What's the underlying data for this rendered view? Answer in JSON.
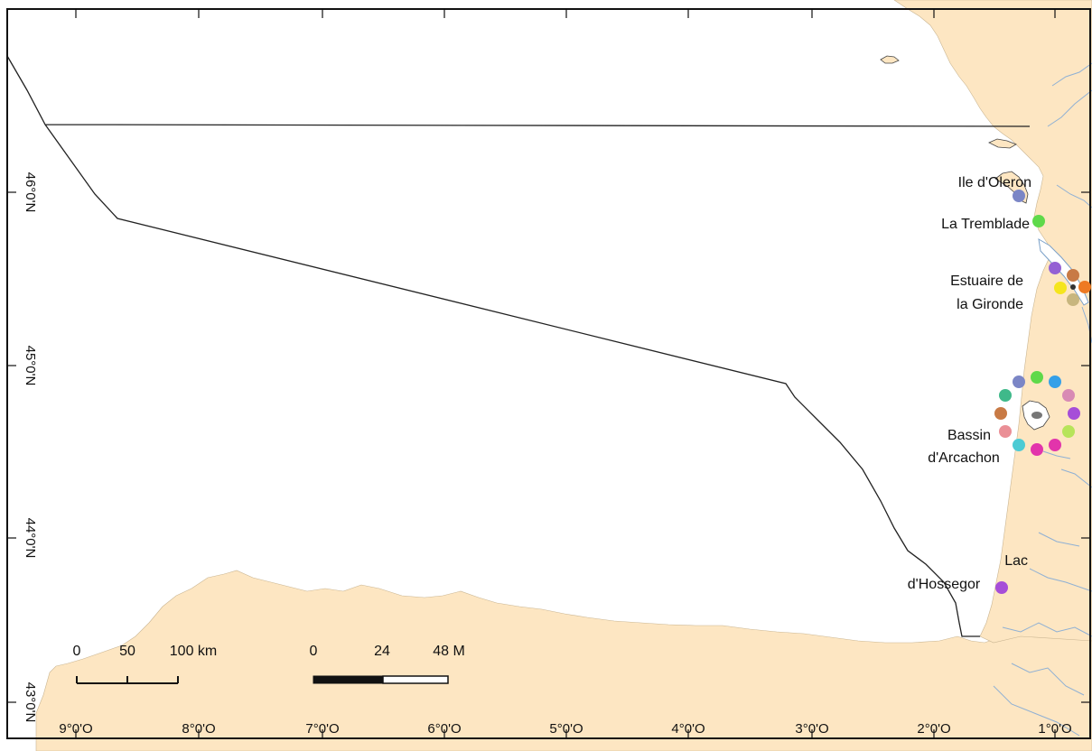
{
  "map": {
    "colors": {
      "land": "#fde6c2",
      "sea": "#ffffff",
      "river": "#8fb0d4",
      "coast": "#222222",
      "frame": "#111111"
    },
    "longitude_ticks": [
      "9°0'O",
      "8°0'O",
      "7°0'O",
      "6°0'O",
      "5°0'O",
      "4°0'O",
      "3°0'O",
      "2°0'O",
      "1°0'O"
    ],
    "latitude_ticks": [
      "46°0'N",
      "45°0'N",
      "44°0'N",
      "43°0'N"
    ],
    "places": [
      {
        "name": "Ile d'Oleron",
        "lines": [
          "Ile d'Oleron"
        ]
      },
      {
        "name": "La Tremblade",
        "lines": [
          "La Tremblade"
        ]
      },
      {
        "name": "Estuaire de la Gironde",
        "lines": [
          "Estuaire de",
          "la Gironde"
        ]
      },
      {
        "name": "Bassin d'Arcachon",
        "lines": [
          "Bassin",
          "d'Arcachon"
        ]
      },
      {
        "name": "Lac d'Hossegor",
        "lines": [
          "Lac",
          "d'Hossegor"
        ]
      }
    ],
    "site_points": {
      "ile_oleron": [
        "#7b86c6"
      ],
      "la_tremblade": [
        "#5fd94a"
      ],
      "gironde": [
        "#9461d4",
        "#c87a45",
        "#ee7a22",
        "#f5e51d",
        "#c8b67e"
      ],
      "arcachon": [
        "#35a0e8",
        "#5fd94a",
        "#7b86c6",
        "#3fb98a",
        "#c87a45",
        "#ea8f96",
        "#4ccbd4",
        "#e234ab",
        "#e234ab",
        "#b7e45a",
        "#a64ed8",
        "#d88ab4"
      ],
      "hossegor": [
        "#a64ed8"
      ]
    },
    "scale_bars": {
      "km": {
        "labels": [
          "0",
          "50",
          "100 km"
        ]
      },
      "miles": {
        "labels": [
          "0",
          "24",
          "48 M"
        ]
      }
    }
  }
}
